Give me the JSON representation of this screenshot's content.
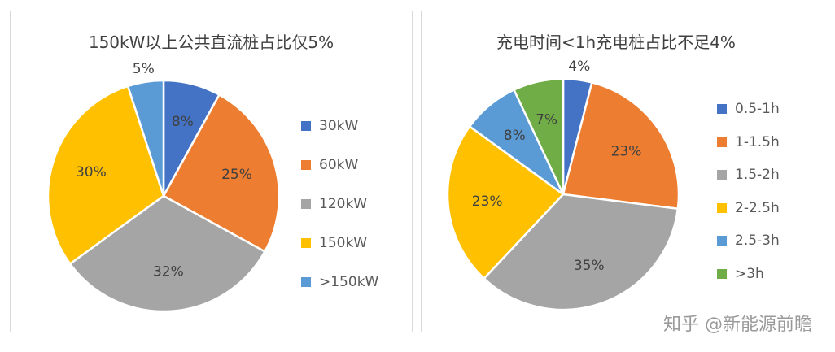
{
  "chart_data": [
    {
      "type": "pie",
      "title": "150kW以上公共直流桩占比仅5%",
      "slices": [
        {
          "label": "30kW",
          "value": 8,
          "display": "8%",
          "color": "#4472C4"
        },
        {
          "label": "60kW",
          "value": 25,
          "display": "25%",
          "color": "#ED7D31"
        },
        {
          "label": "120kW",
          "value": 32,
          "display": "32%",
          "color": "#A5A5A5"
        },
        {
          "label": "150kW",
          "value": 30,
          "display": "30%",
          "color": "#FFC000"
        },
        {
          "label": ">150kW",
          "value": 5,
          "display": "5%",
          "color": "#5B9BD5"
        }
      ],
      "legend_position": "right"
    },
    {
      "type": "pie",
      "title": "充电时间<1h充电桩占比不足4%",
      "slices": [
        {
          "label": "0.5-1h",
          "value": 4,
          "display": "4%",
          "color": "#4472C4"
        },
        {
          "label": "1-1.5h",
          "value": 23,
          "display": "23%",
          "color": "#ED7D31"
        },
        {
          "label": "1.5-2h",
          "value": 35,
          "display": "35%",
          "color": "#A5A5A5"
        },
        {
          "label": "2-2.5h",
          "value": 23,
          "display": "23%",
          "color": "#FFC000"
        },
        {
          "label": "2.5-3h",
          "value": 8,
          "display": "8%",
          "color": "#5B9BD5"
        },
        {
          "label": ">3h",
          "value": 7,
          "display": "7%",
          "color": "#70AD47"
        }
      ],
      "legend_position": "right"
    }
  ],
  "watermark": "知乎 @新能源前瞻"
}
